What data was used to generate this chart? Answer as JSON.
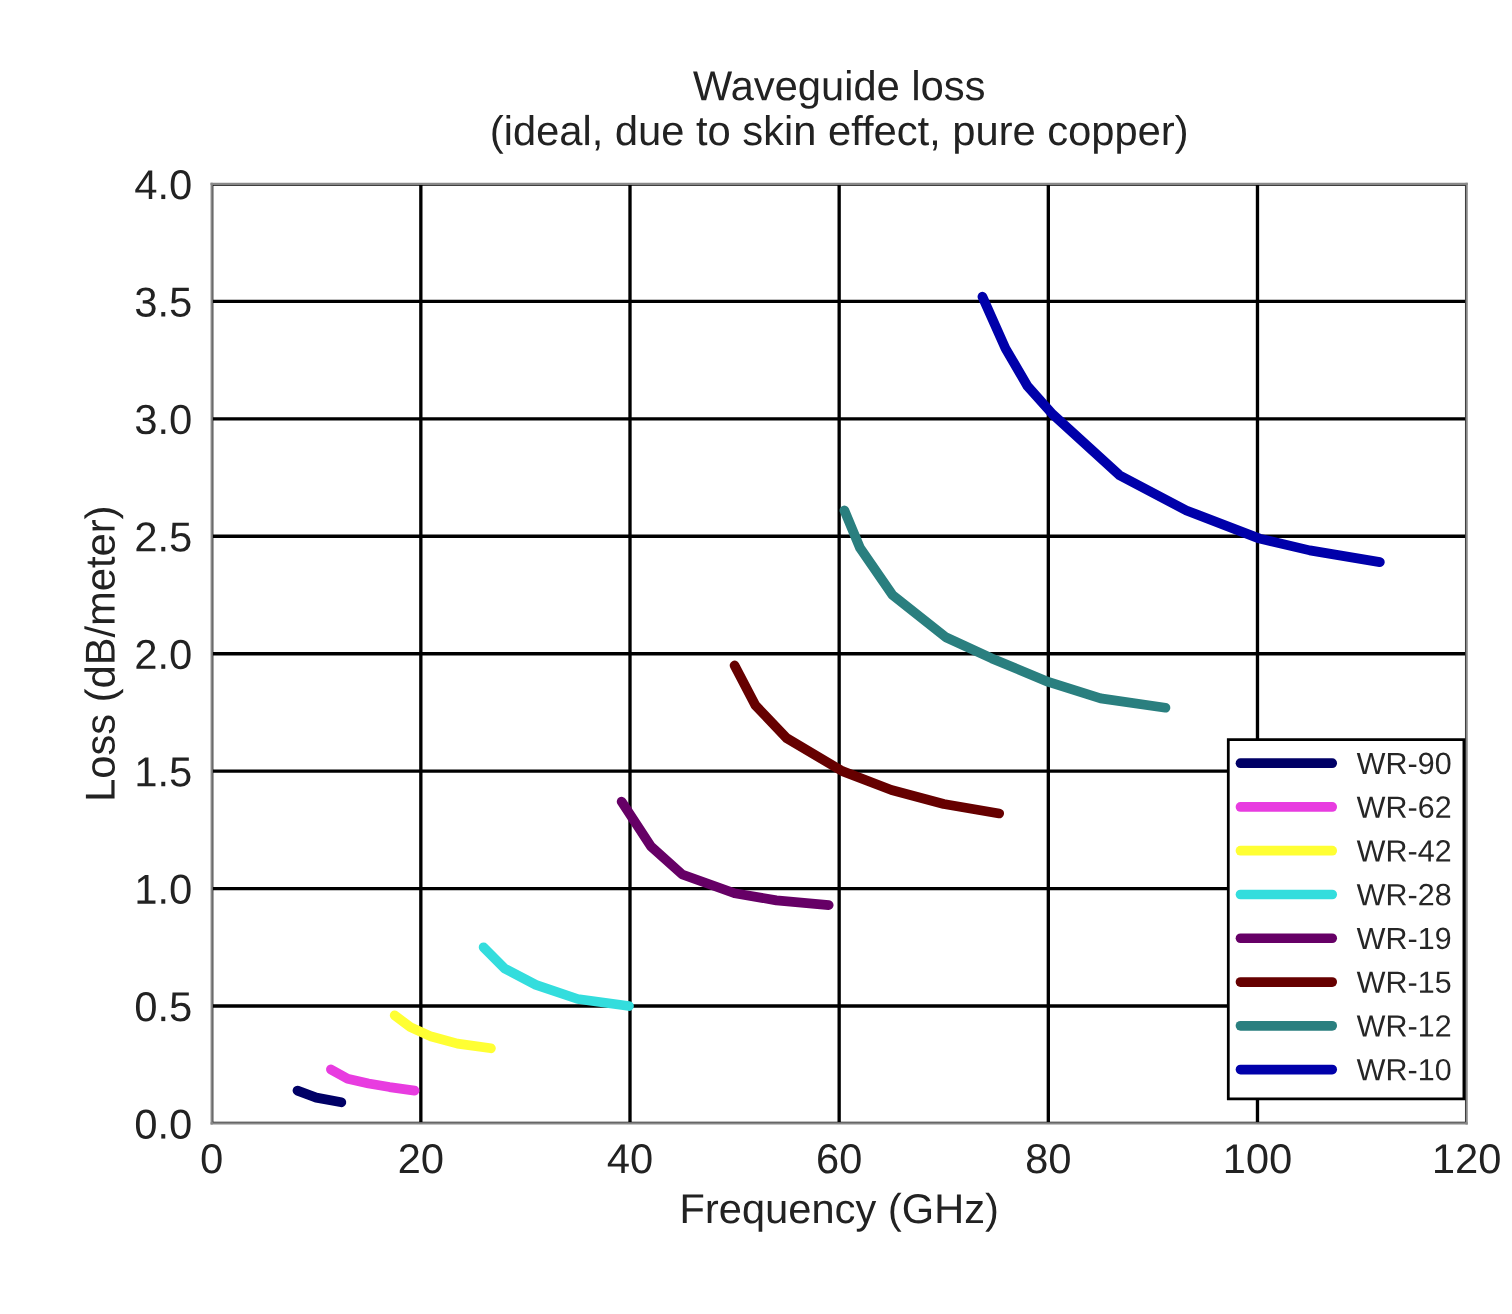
{
  "chart_data": {
    "type": "line",
    "title": "Waveguide loss\n(ideal, due to skin effect, pure copper)",
    "xlabel": "Frequency (GHz)",
    "ylabel": "Loss (dB/meter)",
    "xlim": [
      0,
      120
    ],
    "xticks": [
      0,
      20,
      40,
      60,
      80,
      100,
      120
    ],
    "ylim": [
      0,
      4
    ],
    "yticks": [
      {
        "value": 0,
        "label": "0.0"
      },
      {
        "value": 0.5,
        "label": "0.5"
      },
      {
        "value": 1,
        "label": "1.0"
      },
      {
        "value": 1.5,
        "label": "1.5"
      },
      {
        "value": 2,
        "label": "2.0"
      },
      {
        "value": 2.5,
        "label": "2.5"
      },
      {
        "value": 3,
        "label": "3.0"
      },
      {
        "value": 3.5,
        "label": "3.5"
      },
      {
        "value": 4,
        "label": "4.0"
      }
    ],
    "grid": true,
    "legend": "bottom right",
    "marker": "none",
    "line_style": "solid",
    "series": [
      {
        "name": "WR-90",
        "color": "#000066",
        "x": [
          8.2,
          10,
          12.4
        ],
        "values": [
          0.14,
          0.11,
          0.09
        ]
      },
      {
        "name": "WR-62",
        "color": "#e83ce0",
        "x": [
          11.4,
          13,
          15,
          17,
          19.4
        ],
        "values": [
          0.23,
          0.19,
          0.17,
          0.155,
          0.14
        ]
      },
      {
        "name": "WR-42",
        "color": "#ffff33",
        "x": [
          17.5,
          19,
          21,
          23.5,
          26.7
        ],
        "values": [
          0.46,
          0.41,
          0.37,
          0.34,
          0.32
        ]
      },
      {
        "name": "WR-28",
        "color": "#33dddd",
        "x": [
          26,
          28,
          31,
          35,
          39.9
        ],
        "values": [
          0.75,
          0.66,
          0.59,
          0.53,
          0.5
        ]
      },
      {
        "name": "WR-19",
        "color": "#660066",
        "x": [
          39.2,
          42,
          45,
          50,
          54,
          59
        ],
        "values": [
          1.37,
          1.18,
          1.06,
          0.98,
          0.95,
          0.93
        ]
      },
      {
        "name": "WR-15",
        "color": "#660000",
        "x": [
          50,
          52,
          55,
          60.3,
          65,
          70,
          75.3
        ],
        "values": [
          1.95,
          1.78,
          1.64,
          1.5,
          1.42,
          1.36,
          1.32
        ]
      },
      {
        "name": "WR-12",
        "color": "#2a7f7f",
        "x": [
          60.5,
          62,
          65.1,
          70.2,
          74.6,
          80,
          85,
          91.2
        ],
        "values": [
          2.61,
          2.45,
          2.25,
          2.07,
          1.98,
          1.88,
          1.81,
          1.77
        ]
      },
      {
        "name": "WR-10",
        "color": "#0000aa",
        "x": [
          73.7,
          75.9,
          78,
          80.4,
          86.8,
          93.2,
          100.2,
          105,
          111.7
        ],
        "values": [
          3.52,
          3.3,
          3.14,
          3.02,
          2.76,
          2.61,
          2.49,
          2.44,
          2.39
        ]
      }
    ]
  }
}
